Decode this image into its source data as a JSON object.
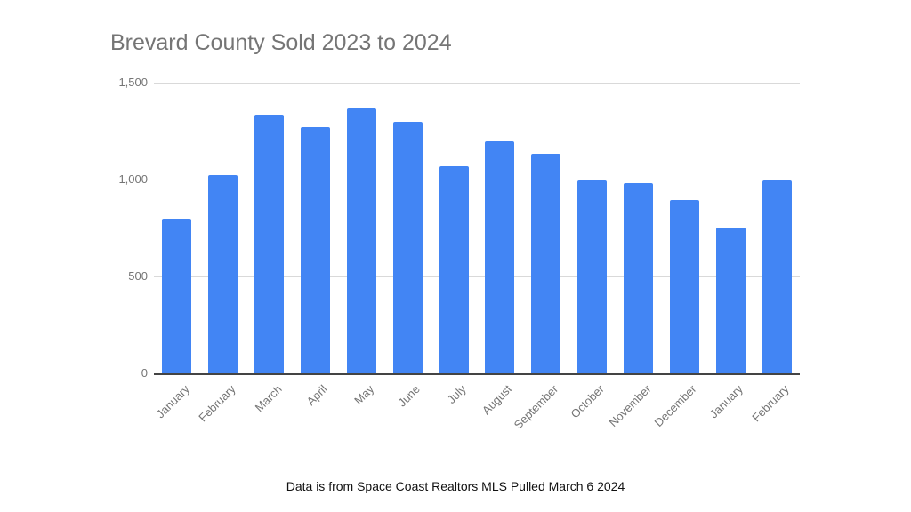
{
  "chart_data": {
    "type": "bar",
    "title": "Brevard County Sold 2023 to 2024",
    "xlabel": "",
    "ylabel": "",
    "ylim": [
      0,
      1500
    ],
    "yticks": [
      "0",
      "500",
      "1,000",
      "1,500"
    ],
    "grid": true,
    "legend": null,
    "categories": [
      "January",
      "February",
      "March",
      "April",
      "May",
      "June",
      "July",
      "August",
      "September",
      "October",
      "November",
      "December",
      "January",
      "February"
    ],
    "series": [
      {
        "name": "Sold",
        "color": "#4285F4",
        "values": [
          798,
          1025,
          1335,
          1272,
          1367,
          1298,
          1070,
          1197,
          1133,
          995,
          982,
          895,
          752,
          995
        ]
      }
    ]
  },
  "footer": "Data is from Space Coast Realtors MLS Pulled March 6 2024"
}
